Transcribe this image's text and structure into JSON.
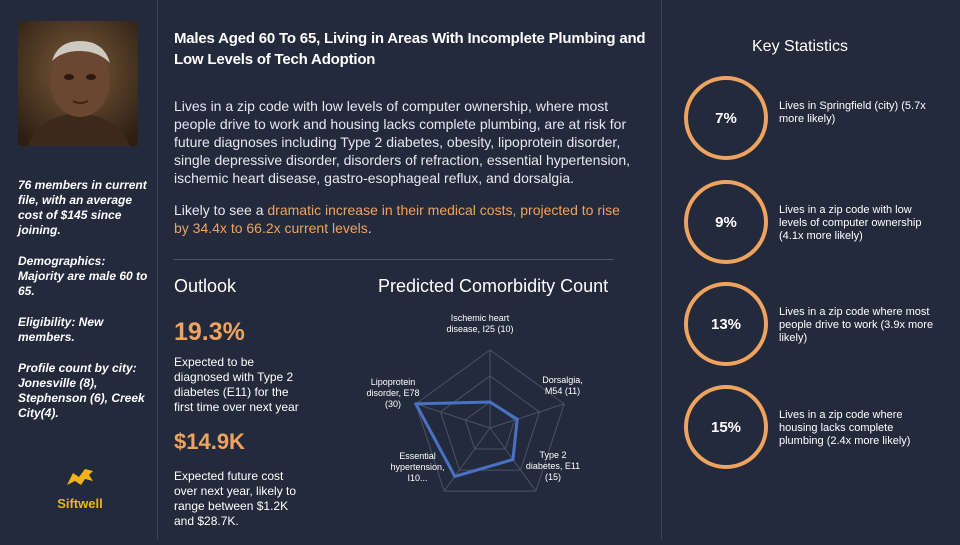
{
  "profile": {
    "title": "Males Aged 60 To 65, Living in Areas With Incomplete Plumbing and Low Levels of Tech Adoption",
    "description": "Lives in a zip code with low levels of computer ownership, where most people drive to work and housing lacks complete plumbing, are at risk for future diagnoses including Type 2 diabetes, obesity, lipoprotein disorder, single depressive disorder, disorders of refraction, essential hypertension, ischemic heart disease, gastro-esophageal reflux, and dorsalgia.",
    "projection_prefix": "Likely to see a ",
    "projection_highlight": "dramatic increase in their medical costs, projected to rise by 34.4x to 66.2x current levels",
    "projection_suffix": "."
  },
  "sidebar": {
    "members": "76 members in current file, with an average cost of $145 since joining.",
    "demographics": "Demographics: Majority are male 60 to 65.",
    "eligibility": "Eligibility: New members.",
    "profile_count": "Profile count by city: Jonesville (8), Stephenson (6), Creek City(4).",
    "logo_text": "Siftwell"
  },
  "outlook": {
    "title": "Outlook",
    "diabetes_pct": "19.3%",
    "diabetes_desc": "Expected to be diagnosed with Type 2 diabetes (E11) for the first time over next year",
    "future_cost": "$14.9K",
    "future_cost_desc": "Expected future cost over next year, likely to range between $1.2K and $28.7K."
  },
  "chart_data": {
    "type": "radar",
    "title": "Predicted Comorbidity Count",
    "axes": [
      {
        "label": "Ischemic heart disease, I25",
        "value": 10,
        "display": "(10)"
      },
      {
        "label": "Dorsalgia, M54",
        "value": 11,
        "display": "(11)"
      },
      {
        "label": "Type 2 diabetes, E11",
        "value": 15,
        "display": "(15)"
      },
      {
        "label": "Essential hypertension, I10...",
        "value": 23,
        "display": ""
      },
      {
        "label": "Lipoprotein disorder, E78",
        "value": 30,
        "display": "(30)"
      }
    ],
    "max": 30,
    "rings": 3,
    "series_color": "#4a72c4"
  },
  "stats": {
    "title": "Key Statistics",
    "items": [
      {
        "pct": "7%",
        "text": "Lives in Springfield (city) (5.7x more likely)"
      },
      {
        "pct": "9%",
        "text": "Lives in a zip code with low levels of computer ownership (4.1x more likely)"
      },
      {
        "pct": "13%",
        "text": "Lives in a zip code where most people drive to work (3.9x more likely)"
      },
      {
        "pct": "15%",
        "text": "Lives in a zip code where housing lacks complete plumbing (2.4x more likely)"
      }
    ]
  },
  "colors": {
    "accent": "#f0a35e",
    "background": "#222a3c",
    "logo": "#f3b21b"
  }
}
